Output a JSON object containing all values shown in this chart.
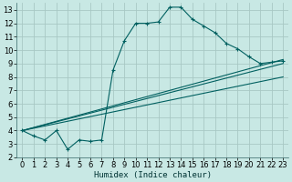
{
  "xlabel": "Humidex (Indice chaleur)",
  "background_color": "#c8e8e4",
  "grid_color": "#a8c8c4",
  "line_color": "#006060",
  "xlim": [
    -0.5,
    23.5
  ],
  "ylim": [
    2,
    13.5
  ],
  "xtick_labels": [
    "0",
    "1",
    "2",
    "3",
    "4",
    "5",
    "6",
    "7",
    "8",
    "9",
    "10",
    "11",
    "12",
    "13",
    "14",
    "15",
    "16",
    "17",
    "18",
    "19",
    "20",
    "21",
    "22",
    "23"
  ],
  "xticks": [
    0,
    1,
    2,
    3,
    4,
    5,
    6,
    7,
    8,
    9,
    10,
    11,
    12,
    13,
    14,
    15,
    16,
    17,
    18,
    19,
    20,
    21,
    22,
    23
  ],
  "yticks": [
    2,
    3,
    4,
    5,
    6,
    7,
    8,
    9,
    10,
    11,
    12,
    13
  ],
  "main_x": [
    0,
    1,
    2,
    3,
    4,
    5,
    6,
    7,
    8,
    9,
    10,
    11,
    12,
    13,
    14,
    15,
    16,
    17,
    18,
    19,
    20,
    21,
    22,
    23
  ],
  "main_y": [
    4.0,
    3.6,
    3.3,
    4.0,
    2.6,
    3.3,
    3.2,
    3.3,
    8.5,
    10.7,
    12.0,
    12.0,
    12.1,
    13.2,
    13.2,
    12.3,
    11.8,
    11.3,
    10.5,
    10.1,
    9.5,
    9.0,
    9.1,
    9.2
  ],
  "line1_x": [
    0,
    23
  ],
  "line1_y": [
    4.0,
    9.3
  ],
  "line2_x": [
    0,
    23
  ],
  "line2_y": [
    4.0,
    8.0
  ],
  "line3_x": [
    0,
    23
  ],
  "line3_y": [
    4.0,
    9.0
  ]
}
